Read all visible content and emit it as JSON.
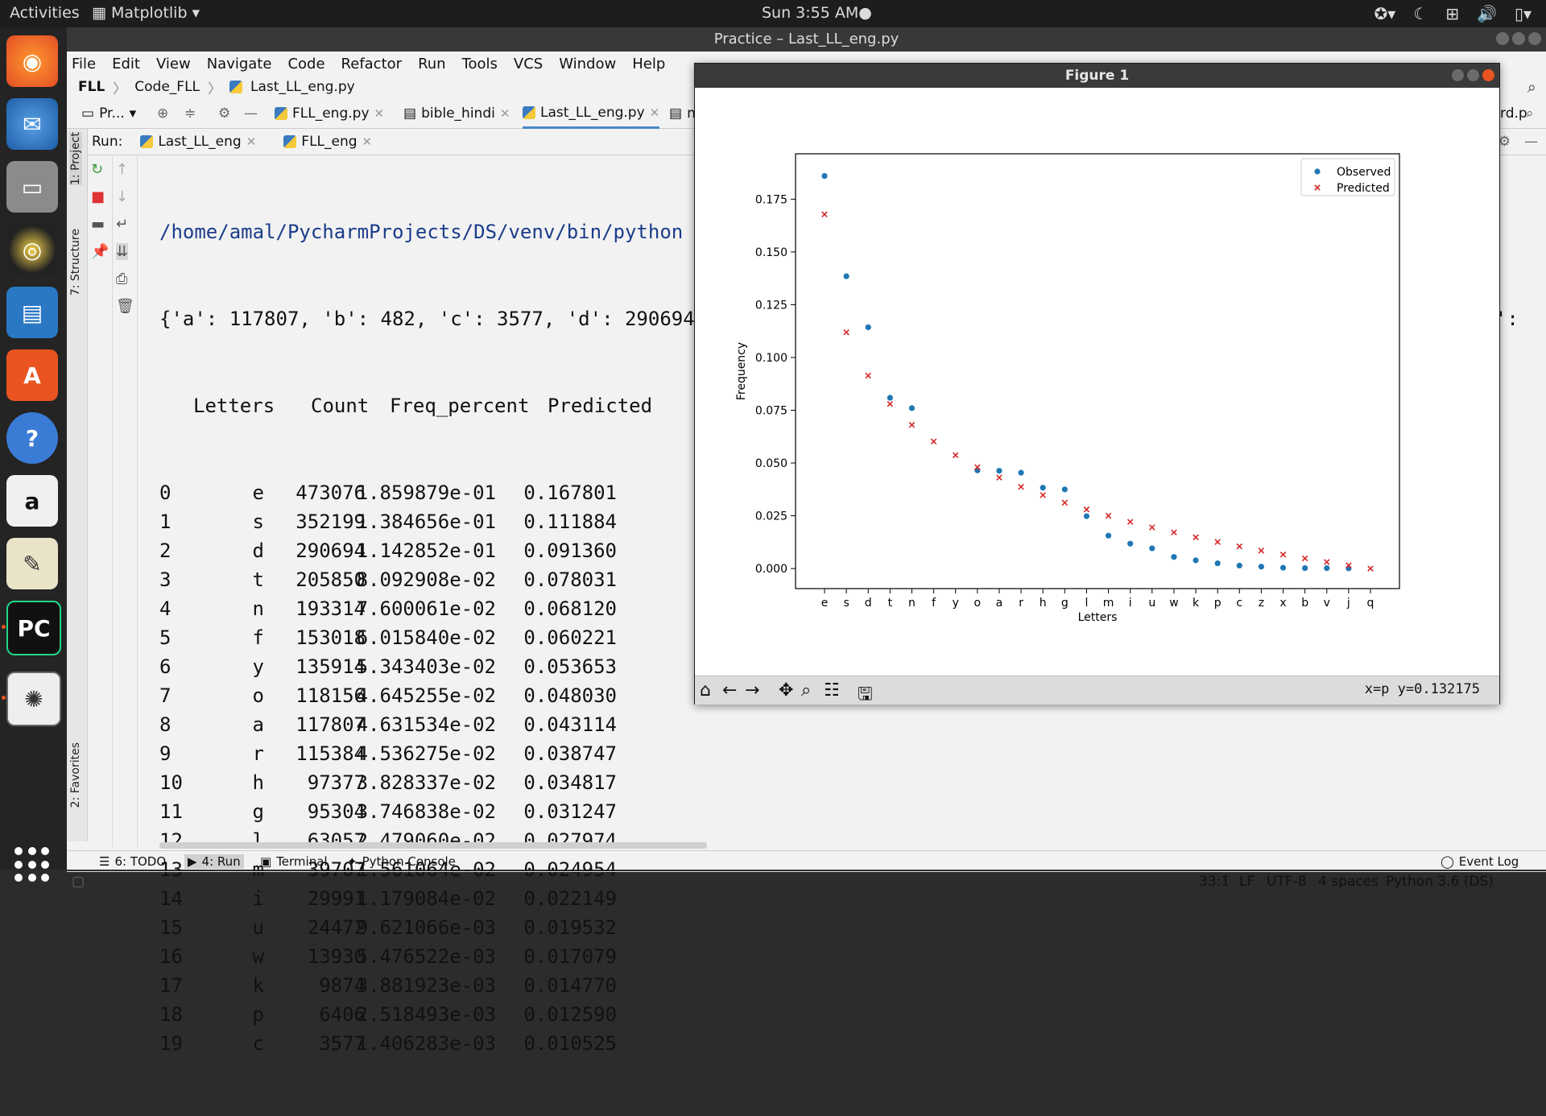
{
  "topbar": {
    "activities": "Activities",
    "app_menu": "Matplotlib ▾",
    "clock": "Sun  3:55 AM●"
  },
  "ide": {
    "window_title": "Practice – Last_LL_eng.py",
    "menu": [
      "File",
      "Edit",
      "View",
      "Navigate",
      "Code",
      "Refactor",
      "Run",
      "Tools",
      "VCS",
      "Window",
      "Help"
    ],
    "breadcrumb": [
      "FLL",
      "Code_FLL",
      "Last_LL_eng.py"
    ],
    "project_label": "Pr...",
    "editor_tabs": [
      "FLL_eng.py",
      "bible_hindi",
      "Last_LL_eng.py",
      "n"
    ],
    "right_tab_fragment": "rd.p",
    "run_label": "Run:",
    "run_tabs": [
      "Last_LL_eng",
      "FLL_eng"
    ],
    "left_tabs": [
      "1: Project",
      "7: Structure",
      "2: Favorites"
    ],
    "bottom_tabs": [
      "6: TODO",
      "4: Run",
      "Terminal",
      "Python Console"
    ],
    "event_log": "Event Log",
    "status": {
      "pos": "33:1",
      "lf": "LF",
      "enc": "UTF-8",
      "indent": "4 spaces",
      "interp": "Python 3.6 (DS)"
    }
  },
  "console": {
    "path_line": "/home/amal/PycharmProjects/DS/venv/bin/python /",
    "dict_line": "{'a': 117807, 'b': 482, 'c': 3577, 'd': 290694,",
    "dict_tail": "'k':",
    "headers": [
      "Letters",
      "Count",
      "Freq_percent",
      "Predicted"
    ],
    "rows": [
      [
        "0",
        "e",
        "473076",
        "1.859879e-01",
        "0.167801"
      ],
      [
        "1",
        "s",
        "352199",
        "1.384656e-01",
        "0.111884"
      ],
      [
        "2",
        "d",
        "290694",
        "1.142852e-01",
        "0.091360"
      ],
      [
        "3",
        "t",
        "205850",
        "8.092908e-02",
        "0.078031"
      ],
      [
        "4",
        "n",
        "193314",
        "7.600061e-02",
        "0.068120"
      ],
      [
        "5",
        "f",
        "153018",
        "6.015840e-02",
        "0.060221"
      ],
      [
        "6",
        "y",
        "135914",
        "5.343403e-02",
        "0.053653"
      ],
      [
        "7",
        "o",
        "118156",
        "4.645255e-02",
        "0.048030"
      ],
      [
        "8",
        "a",
        "117807",
        "4.631534e-02",
        "0.043114"
      ],
      [
        "9",
        "r",
        "115384",
        "4.536275e-02",
        "0.038747"
      ],
      [
        "10",
        "h",
        "97377",
        "3.828337e-02",
        "0.034817"
      ],
      [
        "11",
        "g",
        "95304",
        "3.746838e-02",
        "0.031247"
      ],
      [
        "12",
        "l",
        "63057",
        "2.479060e-02",
        "0.027974"
      ],
      [
        "13",
        "m",
        "39707",
        "1.561064e-02",
        "0.024954"
      ],
      [
        "14",
        "i",
        "29991",
        "1.179084e-02",
        "0.022149"
      ],
      [
        "15",
        "u",
        "24472",
        "9.621066e-03",
        "0.019532"
      ],
      [
        "16",
        "w",
        "13930",
        "5.476522e-03",
        "0.017079"
      ],
      [
        "17",
        "k",
        "9874",
        "3.881923e-03",
        "0.014770"
      ],
      [
        "18",
        "p",
        "6406",
        "2.518493e-03",
        "0.012590"
      ],
      [
        "19",
        "c",
        "3577",
        "1.406283e-03",
        "0.010525"
      ]
    ]
  },
  "figure": {
    "title": "Figure 1",
    "coords": "x=p y=0.132175"
  },
  "chart_data": {
    "type": "scatter",
    "title": "",
    "xlabel": "Letters",
    "ylabel": "Frequency",
    "categories": [
      "e",
      "s",
      "d",
      "t",
      "n",
      "f",
      "y",
      "o",
      "a",
      "r",
      "h",
      "g",
      "l",
      "m",
      "i",
      "u",
      "w",
      "k",
      "p",
      "c",
      "z",
      "x",
      "b",
      "v",
      "j",
      "q"
    ],
    "yticks": [
      "0.000",
      "0.025",
      "0.050",
      "0.075",
      "0.100",
      "0.125",
      "0.150",
      "0.175"
    ],
    "ylim": [
      -0.0095,
      0.1965
    ],
    "legend_position": "top-right",
    "series": [
      {
        "name": "Observed",
        "marker": "circle",
        "color": "#1f77b4",
        "values": [
          0.186,
          0.1385,
          0.1143,
          0.0809,
          0.076,
          null,
          null,
          0.0465,
          0.0463,
          0.0454,
          0.0383,
          0.0375,
          0.0248,
          0.0156,
          0.0118,
          0.0096,
          0.0055,
          0.0039,
          0.0025,
          0.0014,
          0.0009,
          0.0004,
          0.0002,
          0.0002,
          0.0001,
          null
        ]
      },
      {
        "name": "Predicted",
        "marker": "x",
        "color": "#d62728",
        "values": [
          0.1678,
          0.1119,
          0.0914,
          0.078,
          0.0681,
          0.0602,
          0.0537,
          0.048,
          0.0431,
          0.0387,
          0.0348,
          0.0312,
          0.028,
          0.025,
          0.0221,
          0.0195,
          0.0171,
          0.0148,
          0.0126,
          0.0105,
          0.0085,
          0.0066,
          0.0048,
          0.0031,
          0.0015,
          0.0
        ]
      }
    ]
  }
}
